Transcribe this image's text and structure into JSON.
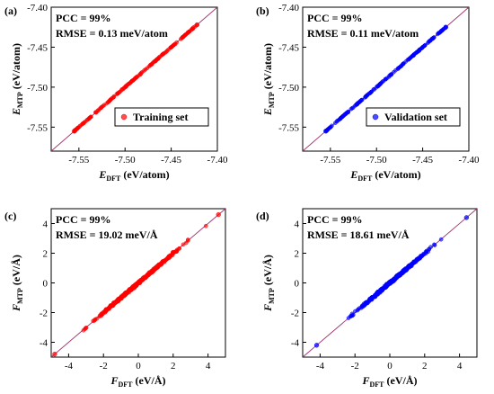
{
  "chart_data": [
    {
      "type": "scatter",
      "panel_label": "(a)",
      "xlabel": "E",
      "xlabel_sub": "DFT",
      "xlabel_unit": " (eV/atom)",
      "ylabel": "E",
      "ylabel_sub": "MTP",
      "ylabel_unit": " (eV/atom)",
      "xlim": [
        -7.58,
        -7.4
      ],
      "ylim": [
        -7.58,
        -7.4
      ],
      "xticks": [
        -7.55,
        -7.5,
        -7.45,
        -7.4
      ],
      "xtick_labels": [
        "-7.55",
        "-7.50",
        "-7.45",
        "-7.40"
      ],
      "yticks": [
        -7.55,
        -7.5,
        -7.45,
        -7.4
      ],
      "ytick_labels": [
        "-7.55",
        "-7.50",
        "-7.45",
        "-7.40"
      ],
      "annotations": [
        "PCC = 99%",
        "RMSE = 0.13 meV/atom"
      ],
      "legend": "Training set",
      "legend_position": "bottom-right",
      "grid": false,
      "series": [
        {
          "name": "Training set",
          "color": "#ff0000",
          "x_range": [
            -7.555,
            -7.422
          ],
          "y_range": [
            -7.555,
            -7.422
          ]
        }
      ],
      "reference_line": {
        "slope": 1,
        "color": "#a0306a"
      }
    },
    {
      "type": "scatter",
      "panel_label": "(b)",
      "xlabel": "E",
      "xlabel_sub": "DFT",
      "xlabel_unit": " (eV/atom)",
      "ylabel": "E",
      "ylabel_sub": "MTP",
      "ylabel_unit": " (eV/atom)",
      "xlim": [
        -7.58,
        -7.4
      ],
      "ylim": [
        -7.58,
        -7.4
      ],
      "xticks": [
        -7.55,
        -7.5,
        -7.45,
        -7.4
      ],
      "xtick_labels": [
        "-7.55",
        "-7.50",
        "-7.45",
        "-7.40"
      ],
      "yticks": [
        -7.55,
        -7.5,
        -7.45,
        -7.4
      ],
      "ytick_labels": [
        "-7.55",
        "-7.50",
        "-7.45",
        "-7.40"
      ],
      "annotations": [
        "PCC = 99%",
        "RMSE = 0.11 meV/atom"
      ],
      "legend": "Validation set",
      "legend_position": "bottom-right",
      "grid": false,
      "series": [
        {
          "name": "Validation set",
          "color": "#0000ff",
          "x_range": [
            -7.555,
            -7.425
          ],
          "y_range": [
            -7.555,
            -7.425
          ]
        }
      ],
      "reference_line": {
        "slope": 1,
        "color": "#a0306a"
      }
    },
    {
      "type": "scatter",
      "panel_label": "(c)",
      "xlabel": "F",
      "xlabel_sub": "DFT",
      "xlabel_unit": " (eV/Å)",
      "ylabel": "F",
      "ylabel_sub": "MTP",
      "ylabel_unit": " (eV/Å)",
      "xlim": [
        -5,
        5
      ],
      "ylim": [
        -5,
        5
      ],
      "xticks": [
        -4,
        -2,
        0,
        2,
        4
      ],
      "xtick_labels": [
        "-4",
        "-2",
        "0",
        "2",
        "4"
      ],
      "yticks": [
        -4,
        -2,
        0,
        2,
        4
      ],
      "ytick_labels": [
        "-4",
        "-2",
        "0",
        "2",
        "4"
      ],
      "annotations": [
        "PCC = 99%",
        "RMSE = 19.02 meV/Å"
      ],
      "grid": false,
      "series": [
        {
          "color": "#ff0000",
          "x_range": [
            -4.8,
            4.6
          ],
          "y_range": [
            -4.8,
            4.6
          ]
        }
      ],
      "reference_line": {
        "slope": 1,
        "color": "#a0306a"
      }
    },
    {
      "type": "scatter",
      "panel_label": "(d)",
      "xlabel": "F",
      "xlabel_sub": "DFT",
      "xlabel_unit": " (eV/Å)",
      "ylabel": "F",
      "ylabel_sub": "MTP",
      "ylabel_unit": " (eV/Å)",
      "xlim": [
        -5,
        5
      ],
      "ylim": [
        -5,
        5
      ],
      "xticks": [
        -4,
        -2,
        0,
        2,
        4
      ],
      "xtick_labels": [
        "-4",
        "-2",
        "0",
        "2",
        "4"
      ],
      "yticks": [
        -4,
        -2,
        0,
        2,
        4
      ],
      "ytick_labels": [
        "-4",
        "-2",
        "0",
        "2",
        "4"
      ],
      "annotations": [
        "PCC = 99%",
        "RMSE = 18.61 meV/Å"
      ],
      "grid": false,
      "series": [
        {
          "color": "#0000ff",
          "x_range": [
            -4.2,
            4.4
          ],
          "y_range": [
            -4.2,
            4.4
          ]
        }
      ],
      "reference_line": {
        "slope": 1,
        "color": "#a0306a"
      }
    }
  ]
}
